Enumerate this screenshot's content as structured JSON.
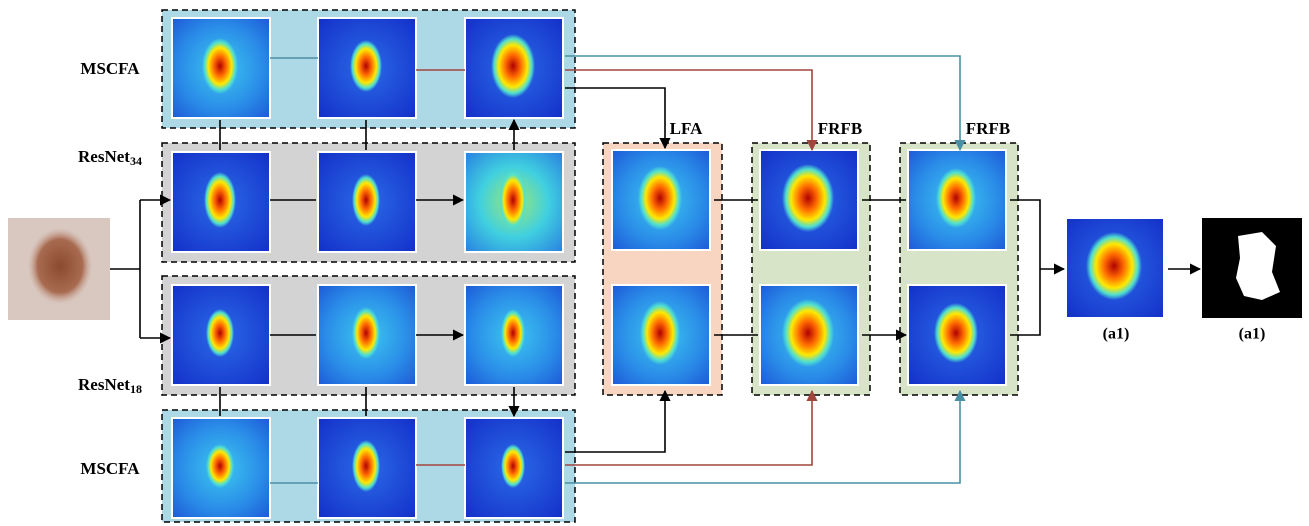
{
  "labels": {
    "top_mscfa": "MSCFA",
    "resnet34": {
      "base": "ResNet",
      "sub": "34"
    },
    "resnet18": {
      "base": "ResNet",
      "sub": "18"
    },
    "bottom_mscfa": "MSCFA"
  },
  "blocks": {
    "lfa": "LFA",
    "frfb_1": "FRFB",
    "frfb_2": "FRFB"
  },
  "outputs": {
    "heatmap": "(a1)",
    "mask": "(a1)"
  }
}
